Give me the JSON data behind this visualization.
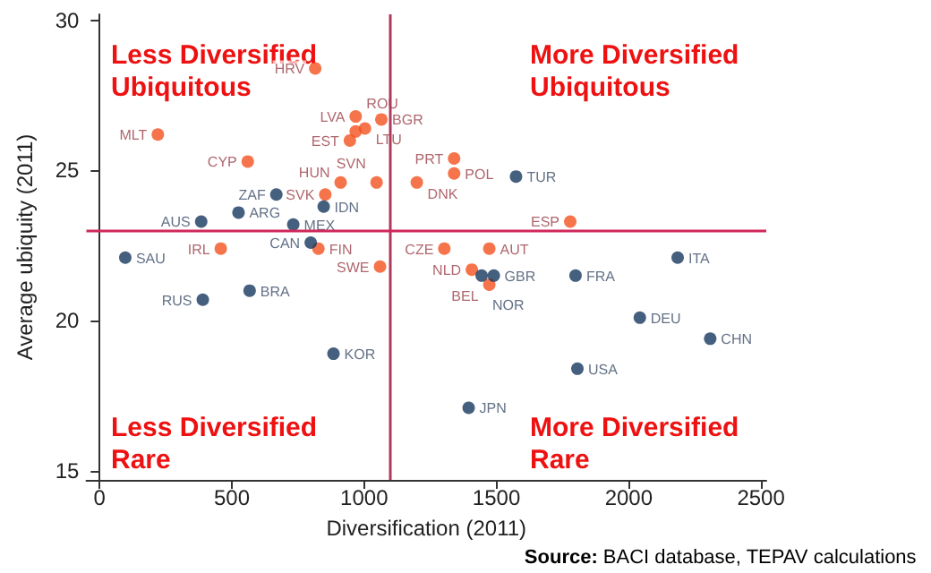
{
  "chart_data": {
    "type": "scatter",
    "xlabel": "Diversification (2011)",
    "ylabel": "Average ubiquity (2011)",
    "xlim": [
      -50,
      2520
    ],
    "xticks": [
      0,
      500,
      1000,
      1500,
      2000,
      2500
    ],
    "ylim": [
      14.7,
      30.2
    ],
    "yticks": [
      15,
      20,
      25,
      30
    ],
    "grid": false,
    "marker": "circle",
    "series": [
      {
        "color": "#f4511e",
        "x": [
          815,
          220,
          968,
          1065,
          1003,
          968,
          946,
          560,
          911,
          1047,
          1199,
          853,
          827,
          458,
          1060,
          1340,
          1340,
          1779,
          1303,
          1473,
          1407,
          1473
        ],
        "values": [
          28.4,
          26.2,
          26.8,
          26.7,
          26.4,
          26.3,
          26.0,
          25.3,
          24.6,
          24.6,
          24.6,
          24.2,
          22.4,
          22.4,
          21.8,
          25.4,
          24.9,
          23.3,
          22.4,
          22.4,
          21.7,
          21.2
        ]
      },
      {
        "color": "#17375e",
        "x": [
          668,
          847,
          525,
          384,
          732,
          798,
          97,
          1574,
          2185,
          1799,
          1444,
          1490,
          2042,
          2308,
          1806,
          1395,
          390,
          567,
          884
        ],
        "values": [
          24.2,
          23.8,
          23.6,
          23.3,
          23.2,
          22.6,
          22.1,
          24.8,
          22.1,
          21.5,
          21.5,
          21.5,
          20.1,
          19.4,
          18.4,
          17.1,
          20.7,
          21.0,
          18.9
        ]
      }
    ],
    "ref_lines": [
      {
        "axis": "x",
        "value": 1100,
        "color": "#b03a5b"
      },
      {
        "axis": "y",
        "value": 23,
        "color": "#d0285a"
      }
    ],
    "annotations": [
      "Less Diversified\nUbiquitous",
      "More Diversified\nUbiquitous",
      "Less Diversified\nRare",
      "More Diversified\nRare",
      "Source: BACI database, TEPAV calculations",
      {
        "text": "HRV",
        "x": 815,
        "y": 28.4
      },
      {
        "text": "MLT",
        "x": 220,
        "y": 26.2
      },
      {
        "text": "LVA",
        "x": 968,
        "y": 26.8
      },
      {
        "text": "BGR",
        "x": 1065,
        "y": 26.7
      },
      {
        "text": "LTU",
        "x": 1003,
        "y": 26.4
      },
      {
        "text": "ROU",
        "x": 968,
        "y": 26.3
      },
      {
        "text": "EST",
        "x": 946,
        "y": 26.0
      },
      {
        "text": "CYP",
        "x": 560,
        "y": 25.3
      },
      {
        "text": "HUN",
        "x": 911,
        "y": 24.6
      },
      {
        "text": "SVN",
        "x": 1047,
        "y": 24.6
      },
      {
        "text": "DNK",
        "x": 1199,
        "y": 24.6
      },
      {
        "text": "SVK",
        "x": 853,
        "y": 24.2
      },
      {
        "text": "FIN",
        "x": 827,
        "y": 22.4
      },
      {
        "text": "IRL",
        "x": 458,
        "y": 22.4
      },
      {
        "text": "SWE",
        "x": 1060,
        "y": 21.8
      },
      {
        "text": "PRT",
        "x": 1340,
        "y": 25.4
      },
      {
        "text": "POL",
        "x": 1340,
        "y": 24.9
      },
      {
        "text": "ESP",
        "x": 1779,
        "y": 23.3
      },
      {
        "text": "CZE",
        "x": 1303,
        "y": 22.4
      },
      {
        "text": "AUT",
        "x": 1473,
        "y": 22.4
      },
      {
        "text": "NLD",
        "x": 1407,
        "y": 21.7
      },
      {
        "text": "BEL",
        "x": 1473,
        "y": 21.2
      },
      {
        "text": "ZAF",
        "x": 668,
        "y": 24.2
      },
      {
        "text": "IDN",
        "x": 847,
        "y": 23.8
      },
      {
        "text": "ARG",
        "x": 525,
        "y": 23.6
      },
      {
        "text": "AUS",
        "x": 384,
        "y": 23.3
      },
      {
        "text": "MEX",
        "x": 732,
        "y": 23.2
      },
      {
        "text": "CAN",
        "x": 798,
        "y": 22.6
      },
      {
        "text": "SAU",
        "x": 97,
        "y": 22.1
      },
      {
        "text": "TUR",
        "x": 1574,
        "y": 24.8
      },
      {
        "text": "ITA",
        "x": 2185,
        "y": 22.1
      },
      {
        "text": "FRA",
        "x": 1799,
        "y": 21.5
      },
      {
        "text": "NOR",
        "x": 1444,
        "y": 21.5
      },
      {
        "text": "GBR",
        "x": 1490,
        "y": 21.5
      },
      {
        "text": "DEU",
        "x": 2042,
        "y": 20.1
      },
      {
        "text": "CHN",
        "x": 2308,
        "y": 19.4
      },
      {
        "text": "USA",
        "x": 1806,
        "y": 18.4
      },
      {
        "text": "JPN",
        "x": 1395,
        "y": 17.1
      },
      {
        "text": "RUS",
        "x": 390,
        "y": 20.7
      },
      {
        "text": "BRA",
        "x": 567,
        "y": 21.0
      },
      {
        "text": "KOR",
        "x": 884,
        "y": 18.9
      }
    ]
  }
}
